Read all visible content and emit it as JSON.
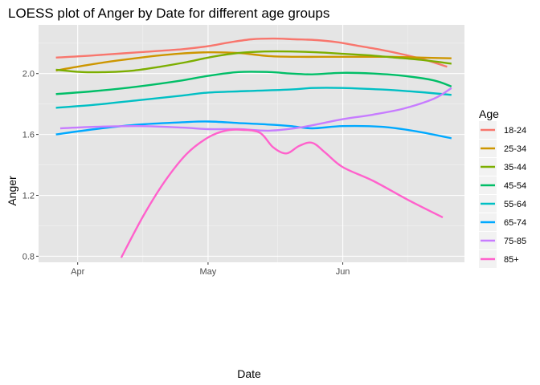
{
  "chart_data": {
    "type": "line",
    "title": "LOESS plot of Anger by Date for different age groups",
    "xlabel": "Date",
    "ylabel": "Anger",
    "x_tick_labels": [
      "Apr",
      "May",
      "Jun"
    ],
    "x_tick_dates": [
      "2020-04-01",
      "2020-05-01",
      "2020-06-01"
    ],
    "xlim": [
      "2020-03-23",
      "2020-06-29"
    ],
    "ylim": [
      0.76,
      2.32
    ],
    "y_ticks": [
      0.8,
      1.2,
      1.6,
      2.0
    ],
    "y_tick_labels": [
      "0.8",
      "1.2",
      "1.6",
      "2.0"
    ],
    "grid": true,
    "background": "#e5e5e5",
    "legend": {
      "title": "Age",
      "position": "right"
    },
    "series": [
      {
        "name": "18-24",
        "color": "#F8766D",
        "points": [
          [
            "2020-03-27",
            2.105
          ],
          [
            "2020-04-05",
            2.12
          ],
          [
            "2020-04-15",
            2.14
          ],
          [
            "2020-04-25",
            2.16
          ],
          [
            "2020-05-01",
            2.18
          ],
          [
            "2020-05-06",
            2.205
          ],
          [
            "2020-05-11",
            2.225
          ],
          [
            "2020-05-16",
            2.23
          ],
          [
            "2020-05-21",
            2.225
          ],
          [
            "2020-05-26",
            2.22
          ],
          [
            "2020-05-31",
            2.205
          ],
          [
            "2020-06-05",
            2.18
          ],
          [
            "2020-06-10",
            2.155
          ],
          [
            "2020-06-15",
            2.125
          ],
          [
            "2020-06-20",
            2.09
          ],
          [
            "2020-06-25",
            2.045
          ]
        ]
      },
      {
        "name": "25-34",
        "color": "#CD9600",
        "points": [
          [
            "2020-03-27",
            2.02
          ],
          [
            "2020-04-03",
            2.055
          ],
          [
            "2020-04-10",
            2.085
          ],
          [
            "2020-04-17",
            2.11
          ],
          [
            "2020-04-24",
            2.13
          ],
          [
            "2020-05-01",
            2.14
          ],
          [
            "2020-05-08",
            2.135
          ],
          [
            "2020-05-15",
            2.115
          ],
          [
            "2020-05-22",
            2.11
          ],
          [
            "2020-05-29",
            2.11
          ],
          [
            "2020-06-05",
            2.11
          ],
          [
            "2020-06-12",
            2.11
          ],
          [
            "2020-06-19",
            2.105
          ],
          [
            "2020-06-26",
            2.1
          ]
        ]
      },
      {
        "name": "35-44",
        "color": "#7CAE00",
        "points": [
          [
            "2020-03-27",
            2.025
          ],
          [
            "2020-04-02",
            2.01
          ],
          [
            "2020-04-08",
            2.01
          ],
          [
            "2020-04-14",
            2.02
          ],
          [
            "2020-04-20",
            2.045
          ],
          [
            "2020-04-26",
            2.075
          ],
          [
            "2020-05-02",
            2.11
          ],
          [
            "2020-05-08",
            2.135
          ],
          [
            "2020-05-14",
            2.145
          ],
          [
            "2020-05-20",
            2.145
          ],
          [
            "2020-05-26",
            2.14
          ],
          [
            "2020-06-01",
            2.13
          ],
          [
            "2020-06-07",
            2.12
          ],
          [
            "2020-06-13",
            2.105
          ],
          [
            "2020-06-19",
            2.09
          ],
          [
            "2020-06-26",
            2.065
          ]
        ]
      },
      {
        "name": "45-54",
        "color": "#00BE67",
        "points": [
          [
            "2020-03-27",
            1.865
          ],
          [
            "2020-04-05",
            1.885
          ],
          [
            "2020-04-15",
            1.915
          ],
          [
            "2020-04-25",
            1.955
          ],
          [
            "2020-05-01",
            1.985
          ],
          [
            "2020-05-08",
            2.01
          ],
          [
            "2020-05-15",
            2.01
          ],
          [
            "2020-05-20",
            2.0
          ],
          [
            "2020-05-25",
            1.995
          ],
          [
            "2020-06-01",
            2.005
          ],
          [
            "2020-06-08",
            2.0
          ],
          [
            "2020-06-15",
            1.985
          ],
          [
            "2020-06-22",
            1.955
          ],
          [
            "2020-06-26",
            1.915
          ]
        ]
      },
      {
        "name": "55-64",
        "color": "#00BFC4",
        "points": [
          [
            "2020-03-27",
            1.775
          ],
          [
            "2020-04-05",
            1.795
          ],
          [
            "2020-04-15",
            1.825
          ],
          [
            "2020-04-25",
            1.855
          ],
          [
            "2020-05-01",
            1.875
          ],
          [
            "2020-05-10",
            1.885
          ],
          [
            "2020-05-20",
            1.895
          ],
          [
            "2020-05-25",
            1.905
          ],
          [
            "2020-06-01",
            1.905
          ],
          [
            "2020-06-10",
            1.895
          ],
          [
            "2020-06-18",
            1.88
          ],
          [
            "2020-06-26",
            1.86
          ]
        ]
      },
      {
        "name": "65-74",
        "color": "#00A9FF",
        "points": [
          [
            "2020-03-27",
            1.6
          ],
          [
            "2020-04-05",
            1.635
          ],
          [
            "2020-04-15",
            1.665
          ],
          [
            "2020-04-25",
            1.68
          ],
          [
            "2020-05-01",
            1.685
          ],
          [
            "2020-05-08",
            1.675
          ],
          [
            "2020-05-15",
            1.665
          ],
          [
            "2020-05-20",
            1.655
          ],
          [
            "2020-05-25",
            1.64
          ],
          [
            "2020-06-01",
            1.655
          ],
          [
            "2020-06-10",
            1.65
          ],
          [
            "2020-06-18",
            1.62
          ],
          [
            "2020-06-26",
            1.575
          ]
        ]
      },
      {
        "name": "75-85",
        "color": "#C77CFF",
        "points": [
          [
            "2020-03-28",
            1.64
          ],
          [
            "2020-04-05",
            1.65
          ],
          [
            "2020-04-15",
            1.655
          ],
          [
            "2020-04-25",
            1.645
          ],
          [
            "2020-05-01",
            1.635
          ],
          [
            "2020-05-08",
            1.635
          ],
          [
            "2020-05-15",
            1.625
          ],
          [
            "2020-05-22",
            1.645
          ],
          [
            "2020-06-01",
            1.7
          ],
          [
            "2020-06-08",
            1.73
          ],
          [
            "2020-06-15",
            1.77
          ],
          [
            "2020-06-22",
            1.835
          ],
          [
            "2020-06-26",
            1.905
          ]
        ]
      },
      {
        "name": "85+",
        "color": "#FF61CC",
        "points": [
          [
            "2020-04-11",
            0.79
          ],
          [
            "2020-04-16",
            1.06
          ],
          [
            "2020-04-21",
            1.29
          ],
          [
            "2020-04-26",
            1.47
          ],
          [
            "2020-05-01",
            1.58
          ],
          [
            "2020-05-05",
            1.625
          ],
          [
            "2020-05-09",
            1.63
          ],
          [
            "2020-05-13",
            1.61
          ],
          [
            "2020-05-16",
            1.515
          ],
          [
            "2020-05-19",
            1.475
          ],
          [
            "2020-05-22",
            1.525
          ],
          [
            "2020-05-25",
            1.545
          ],
          [
            "2020-05-28",
            1.48
          ],
          [
            "2020-06-01",
            1.385
          ],
          [
            "2020-06-08",
            1.295
          ],
          [
            "2020-06-16",
            1.17
          ],
          [
            "2020-06-24",
            1.055
          ]
        ]
      }
    ]
  }
}
